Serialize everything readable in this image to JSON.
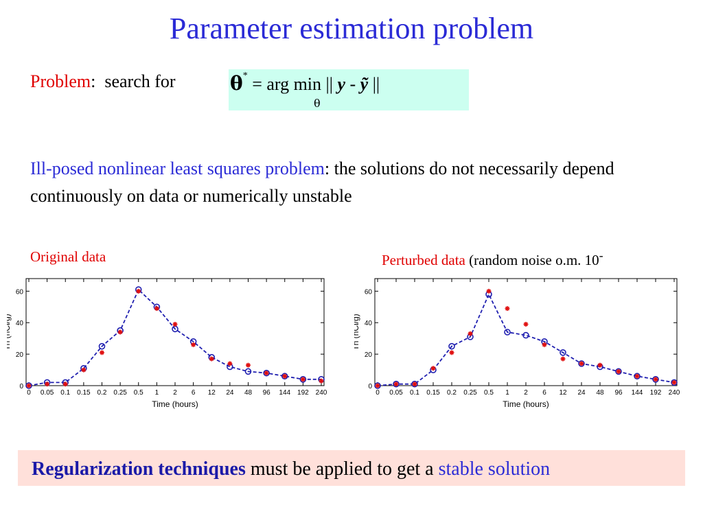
{
  "title": "Parameter estimation problem",
  "problem": {
    "label": "Problem",
    "colon": ":",
    "text": "search for",
    "formula": {
      "theta": "θ",
      "star": "*",
      "equals_argmin": "= arg min || ",
      "y": "y",
      "minus": " - ",
      "ytilde": "ỹ",
      "close": " ||",
      "subscript": "θ"
    }
  },
  "ill_posed": {
    "highlight": "Ill-posed nonlinear least squares problem",
    "rest": ": the solutions do not necessarily depend continuously on data or numerically unstable"
  },
  "captions": {
    "left": "Original data",
    "right_highlight": "Perturbed data",
    "right_rest": " (random noise o.m. 10",
    "right_sup": "-"
  },
  "bottom": {
    "highlight1": "Regularization techniques",
    "middle": " must be applied to get a ",
    "highlight2": "stable solution"
  },
  "colors": {
    "fit_line": "#1f1fb0",
    "marker_red": "#e01010",
    "marker_blue": "#1f1fb0"
  },
  "chart_data": [
    {
      "type": "line",
      "caption": "Original data",
      "xlabel": "Time (hours)",
      "ylabel": "Th (nCi/g)",
      "categories": [
        "0",
        "0.05",
        "0.1",
        "0.15",
        "0.2",
        "0.25",
        "0.5",
        "1",
        "2",
        "6",
        "12",
        "24",
        "48",
        "96",
        "144",
        "192",
        "240"
      ],
      "yticks": [
        0,
        20,
        40,
        60
      ],
      "ylim": [
        0,
        68
      ],
      "series": [
        {
          "marker": "circle",
          "values": [
            0,
            2,
            2,
            11,
            25,
            35,
            61,
            50,
            36,
            28,
            18,
            12,
            9,
            8,
            6,
            4,
            4
          ]
        },
        {
          "marker": "asterisk",
          "values": [
            0,
            1,
            1,
            10,
            21,
            34,
            60,
            49,
            39,
            26,
            17,
            14,
            13,
            8,
            6,
            4,
            3
          ]
        }
      ]
    },
    {
      "type": "line",
      "caption": "Perturbed data",
      "xlabel": "Time (hours)",
      "ylabel": "Th (nCi/g)",
      "categories": [
        "0",
        "0.05",
        "0.1",
        "0.15",
        "0.2",
        "0.25",
        "0.5",
        "1",
        "2",
        "6",
        "12",
        "24",
        "48",
        "96",
        "144",
        "192",
        "240"
      ],
      "yticks": [
        0,
        20,
        40,
        60
      ],
      "ylim": [
        0,
        68
      ],
      "series": [
        {
          "marker": "circle",
          "values": [
            0,
            1,
            1,
            10,
            25,
            31,
            58,
            34,
            32,
            28,
            21,
            14,
            12,
            9,
            6,
            4,
            2
          ]
        },
        {
          "marker": "asterisk",
          "values": [
            0,
            1,
            1,
            11,
            21,
            33,
            60,
            49,
            39,
            26,
            17,
            14,
            13,
            9,
            6,
            4,
            2
          ]
        }
      ]
    }
  ]
}
